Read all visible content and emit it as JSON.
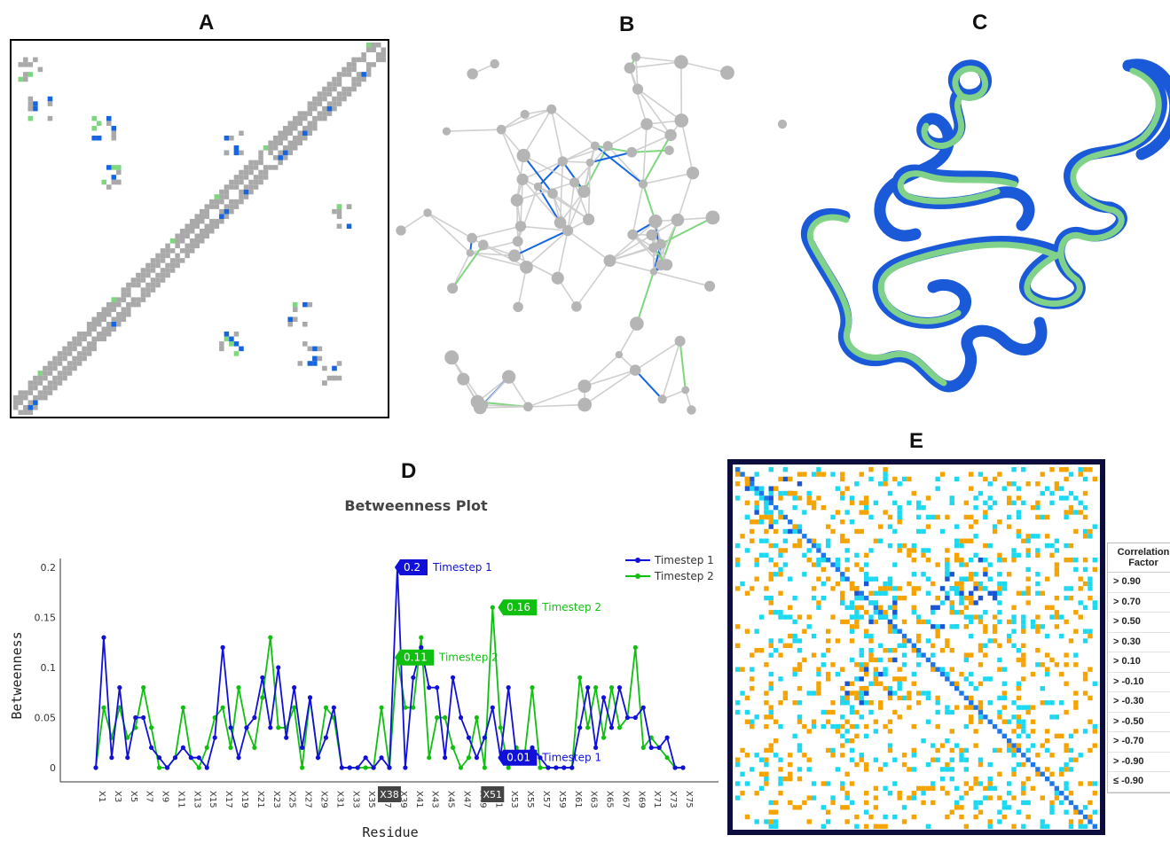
{
  "panels": {
    "a": "A",
    "b": "B",
    "c": "C",
    "d": "D",
    "e": "E"
  },
  "colors": {
    "gray": "#a9a9a9",
    "blue": "#1565e0",
    "green": "#7ed67e",
    "series1": "#1010d8",
    "series2": "#10c010",
    "orange": "#f5a300",
    "cyan": "#1cd8f0",
    "frame": "#0d0d3d"
  },
  "chart_data": {
    "type": "line",
    "title": "Betweenness Plot",
    "xlabel": "Residue",
    "ylabel": "Betweenness",
    "ylim": [
      0,
      0.2
    ],
    "yticks": [
      "0",
      "0.05",
      "0.1",
      "0.15",
      "0.2"
    ],
    "x_tick_labels": [
      "X1",
      "X3",
      "X5",
      "X7",
      "X9",
      "X11",
      "X13",
      "X15",
      "X17",
      "X19",
      "X21",
      "X23",
      "X25",
      "X27",
      "X29",
      "X31",
      "X33",
      "X35",
      "X37",
      "X39",
      "X41",
      "X43",
      "X45",
      "X47",
      "X49",
      "X51",
      "X53",
      "X55",
      "X57",
      "X59",
      "X61",
      "X63",
      "X65",
      "X67",
      "X69",
      "X71",
      "X73",
      "X75"
    ],
    "hover_x_labels": [
      "X38",
      "X51"
    ],
    "legend_position": "top-right",
    "series": [
      {
        "name": "Timestep 1",
        "values": [
          0,
          0.13,
          0.01,
          0.08,
          0.01,
          0.05,
          0.05,
          0.02,
          0.01,
          0,
          0.01,
          0.02,
          0.01,
          0.01,
          0,
          0.03,
          0.12,
          0.04,
          0.01,
          0.04,
          0.05,
          0.09,
          0.04,
          0.1,
          0.03,
          0.08,
          0.02,
          0.07,
          0.01,
          0.03,
          0.06,
          0,
          0,
          0,
          0.01,
          0,
          0.01,
          0,
          0.2,
          0,
          0.09,
          0.12,
          0.08,
          0.08,
          0.01,
          0.09,
          0.05,
          0.03,
          0.01,
          0.03,
          0.06,
          0.01,
          0.08,
          0.01,
          0.01,
          0.02,
          0.01,
          0,
          0,
          0,
          0,
          0.04,
          0.08,
          0.02,
          0.07,
          0.04,
          0.08,
          0.05,
          0.05,
          0.06,
          0.02,
          0.02,
          0.03,
          0,
          0
        ]
      },
      {
        "name": "Timestep 2",
        "values": [
          0,
          0.06,
          0.03,
          0.06,
          0.03,
          0.04,
          0.08,
          0.04,
          0,
          0,
          0.01,
          0.06,
          0.01,
          0,
          0.02,
          0.05,
          0.06,
          0.02,
          0.08,
          0.04,
          0.02,
          0.07,
          0.13,
          0.04,
          0.04,
          0.06,
          0,
          0.07,
          0.01,
          0.06,
          0.05,
          0,
          0,
          0,
          0,
          0,
          0.06,
          0,
          0.11,
          0.06,
          0.06,
          0.13,
          0.01,
          0.05,
          0.05,
          0.02,
          0,
          0.01,
          0.05,
          0,
          0.16,
          0.04,
          0,
          0.02,
          0.01,
          0.08,
          0,
          0,
          0,
          0,
          0,
          0.09,
          0.04,
          0.08,
          0.03,
          0.08,
          0.04,
          0.05,
          0.12,
          0.02,
          0.03,
          0.02,
          0.01,
          0,
          0
        ]
      }
    ],
    "annotations": [
      {
        "value_label": "0.2",
        "text": "Timestep 1",
        "series": 0
      },
      {
        "value_label": "0.11",
        "text": "Timestep 2",
        "series": 1
      },
      {
        "value_label": "0.16",
        "text": "Timestep 2",
        "series": 1
      },
      {
        "value_label": "0.01",
        "text": "Timestep 1",
        "series": 0
      }
    ]
  },
  "correlation_legend": {
    "title_line1": "Correlation",
    "title_line2": "Factor",
    "rows": [
      {
        "label": "> 0.90",
        "color": "#1a33b5"
      },
      {
        "label": "> 0.70",
        "color": "#1a55d5"
      },
      {
        "label": "> 0.50",
        "color": "#1e77e8"
      },
      {
        "label": "> 0.30",
        "color": "#1aa5ee"
      },
      {
        "label": "> 0.10",
        "color": "#1cd8f0"
      },
      {
        "label": "> -0.10",
        "color": "#ffffff"
      },
      {
        "label": "> -0.30",
        "color": "#f5a300"
      },
      {
        "label": "> -0.50",
        "color": "#f08a00"
      },
      {
        "label": "> -0.70",
        "color": "#ea6a00"
      },
      {
        "label": "> -0.90",
        "color": "#e03c00"
      },
      {
        "label": "≤ -0.90",
        "color": "#d01000"
      }
    ]
  }
}
